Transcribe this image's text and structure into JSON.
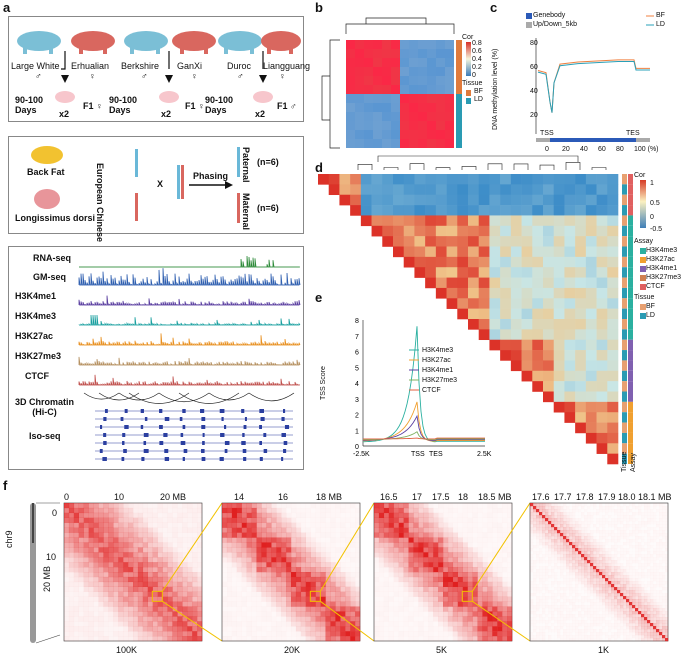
{
  "panels": {
    "a": "a",
    "b": "b",
    "c": "c",
    "d": "d",
    "e": "e",
    "f": "f"
  },
  "breeds": {
    "row1": [
      "Large White",
      "Erhualian",
      "Berkshire",
      "GanXi",
      "Duroc",
      "Liangguang"
    ],
    "sex_row": [
      "♂",
      "♀",
      "♂",
      "♀",
      "♂",
      "♀"
    ],
    "days": "90-100\nDays",
    "f1": [
      "F1 ♀",
      "F1 ♀",
      "F1 ♂"
    ],
    "x2": "x2"
  },
  "phasing": {
    "tissue1": "Back Fat",
    "tissue2": "Longissimus dorsi",
    "european": "European",
    "chinese": "Chinese",
    "cross": "X",
    "arrow_label": "Phasing",
    "paternal": "Paternal",
    "maternal": "Maternal",
    "n1": "(n=6)",
    "n2": "(n=6)"
  },
  "tracks": {
    "labels": [
      "RNA-seq",
      "GM-seq",
      "H3K4me1",
      "H3K4me3",
      "H3K27ac",
      "H3K27me3",
      "CTCF"
    ],
    "colors": [
      "#2e8b3a",
      "#2f5fb0",
      "#5b3fa0",
      "#1aa0a0",
      "#e89020",
      "#b59060",
      "#c0504d"
    ],
    "hic_label": "3D Chromatin\n(Hi-C)",
    "iso_label": "Iso-seq"
  },
  "panel_b": {
    "legend_title": "Cor",
    "ticks": [
      "0.8",
      "0.6",
      "0.4",
      "0.2",
      "0"
    ],
    "tissue_title": "Tissue",
    "tissues": [
      {
        "name": "BF",
        "color": "#e07b3c"
      },
      {
        "name": "LD",
        "color": "#2a9bb3"
      }
    ]
  },
  "panel_c": {
    "legend": [
      {
        "name": "Genebody",
        "color": "#2b5ab8"
      },
      {
        "name": "Up/Down_5kb",
        "color": "#aaaaaa"
      }
    ],
    "lines": [
      {
        "name": "BF",
        "color": "#f08040"
      },
      {
        "name": "LD",
        "color": "#2aa0b8"
      }
    ],
    "ylabel": "DNA methylation level (%)",
    "yticks": [
      "80",
      "60",
      "40",
      "20"
    ],
    "xticks": [
      "0",
      "20",
      "40",
      "60",
      "80",
      "100 (%)"
    ],
    "tss": "TSS",
    "tes": "TES"
  },
  "panel_d": {
    "legend_title": "Cor",
    "ticks": [
      "1",
      "0.5",
      "0",
      "-0.5"
    ],
    "assay_title": "Assay",
    "assays": [
      {
        "name": "H3K4me3",
        "color": "#2bb0a0"
      },
      {
        "name": "H3K27ac",
        "color": "#f0a030"
      },
      {
        "name": "H3K4me1",
        "color": "#8060b0"
      },
      {
        "name": "H3K27me3",
        "color": "#d08050"
      },
      {
        "name": "CTCF",
        "color": "#e06060"
      }
    ],
    "tissue_title": "Tissue",
    "tissues": [
      {
        "name": "BF",
        "color": "#e8a070"
      },
      {
        "name": "LD",
        "color": "#2a9bb3"
      }
    ],
    "side_labels": [
      "Tissue",
      "Assay"
    ]
  },
  "panel_e": {
    "ylabel": "TSS Score",
    "yticks": [
      "8",
      "7",
      "6",
      "5",
      "4",
      "3",
      "2",
      "1",
      "0"
    ],
    "xticks": [
      "-2.5K",
      "TSS",
      "TES",
      "2.5K"
    ],
    "series": [
      {
        "name": "H3K4me3",
        "color": "#2bb0a0",
        "peak": 7.6
      },
      {
        "name": "H3K27ac",
        "color": "#f0a030",
        "peak": 2.8
      },
      {
        "name": "H3K4me1",
        "color": "#5b3fa0",
        "peak": 1.9
      },
      {
        "name": "H3K27me3",
        "color": "#80b060",
        "peak": 0.9
      },
      {
        "name": "CTCF",
        "color": "#e06040",
        "peak": 0.5
      }
    ]
  },
  "panel_f": {
    "chrom": "chr9",
    "maps": [
      {
        "res": "100K",
        "xticks": [
          "0",
          "10",
          "20 MB"
        ],
        "yticks": [
          "0",
          "10",
          "20 MB"
        ]
      },
      {
        "res": "20K",
        "xticks": [
          "14",
          "16",
          "18 MB"
        ]
      },
      {
        "res": "5K",
        "xticks": [
          "16.5",
          "17",
          "17.5",
          "18",
          "18.5 MB"
        ]
      },
      {
        "res": "1K",
        "xticks": [
          "17.6",
          "17.7",
          "17.8",
          "17.9",
          "18.0",
          "18.1 MB"
        ]
      }
    ]
  }
}
